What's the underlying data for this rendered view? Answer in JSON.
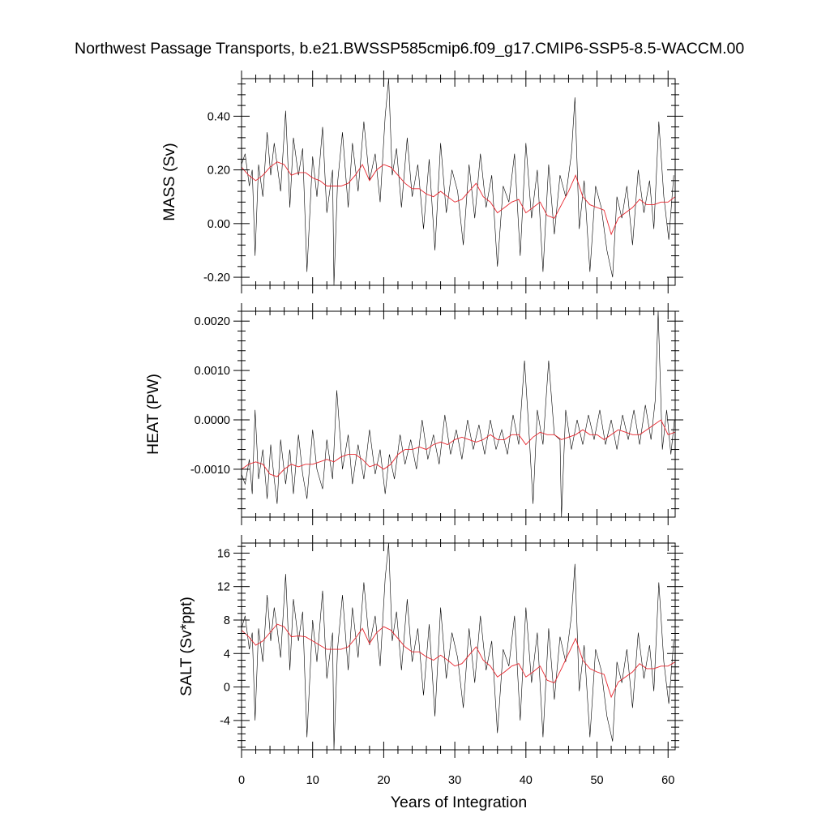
{
  "title": "Northwest Passage Transports, b.e21.BWSSP585cmip6.f09_g17.CMIP6-SSP5-8.5-WACCM.00",
  "colors": {
    "raw": "#000000",
    "smooth": "#e8242c",
    "frame": "#000000"
  },
  "chart_data": [
    {
      "type": "line",
      "ylabel": "MASS (Sv)",
      "xlabel": "",
      "xlim": [
        0,
        61
      ],
      "ylim": [
        -0.23,
        0.54
      ],
      "yticks": [
        -0.2,
        0.0,
        0.2,
        0.4
      ],
      "ytick_labels": [
        "-0.20",
        "0.00",
        "0.20",
        "0.40"
      ],
      "xticks": [
        0,
        10,
        20,
        30,
        40,
        50,
        60
      ],
      "xtick_labels": [],
      "series": [
        {
          "style": "raw",
          "x": [
            0,
            0.5,
            1.1,
            1.5,
            1.9,
            2.4,
            3.0,
            3.6,
            4.1,
            4.6,
            5.0,
            5.5,
            6.2,
            6.8,
            7.3,
            8.0,
            8.6,
            9.2,
            10.0,
            10.6,
            11.4,
            12.0,
            12.8,
            13.0,
            13.5,
            14.2,
            15.0,
            15.6,
            16.4,
            17.2,
            18.0,
            18.8,
            19.5,
            20.2,
            20.7,
            21.2,
            21.8,
            22.5,
            23.3,
            24.0,
            24.8,
            25.6,
            26.4,
            27.2,
            28.0,
            28.8,
            29.6,
            30.4,
            31.2,
            32.0,
            32.8,
            33.6,
            34.4,
            35.2,
            36.0,
            36.8,
            37.6,
            38.4,
            39.2,
            40.0,
            40.8,
            41.6,
            42.4,
            43.2,
            44.0,
            44.8,
            45.6,
            46.4,
            46.9,
            47.5,
            48.2,
            49.0,
            49.8,
            50.6,
            51.4,
            52.2,
            52.8,
            53.5,
            54.2,
            55.0,
            55.8,
            56.6,
            57.4,
            58.0,
            58.7,
            59.4,
            60.1,
            60.8
          ],
          "values": [
            0.22,
            0.26,
            0.14,
            0.2,
            -0.12,
            0.22,
            0.1,
            0.34,
            0.18,
            0.3,
            0.22,
            0.12,
            0.42,
            0.06,
            0.32,
            0.18,
            0.28,
            -0.18,
            0.25,
            0.1,
            0.36,
            0.04,
            0.2,
            -0.23,
            0.15,
            0.34,
            0.06,
            0.3,
            0.12,
            0.38,
            0.16,
            0.26,
            0.08,
            0.4,
            0.54,
            0.18,
            0.28,
            0.06,
            0.32,
            0.1,
            0.22,
            -0.02,
            0.24,
            -0.1,
            0.3,
            0.04,
            0.2,
            0.12,
            -0.08,
            0.22,
            0.02,
            0.26,
            0.06,
            0.18,
            -0.16,
            0.14,
            0.08,
            0.26,
            -0.12,
            0.3,
            0.02,
            0.2,
            -0.18,
            0.22,
            -0.04,
            0.18,
            0.1,
            0.26,
            0.47,
            -0.02,
            0.16,
            -0.18,
            0.14,
            0.06,
            -0.1,
            -0.2,
            0.1,
            0.02,
            0.14,
            -0.08,
            0.2,
            0.04,
            0.16,
            -0.02,
            0.38,
            0.1,
            -0.06,
            0.18
          ]
        },
        {
          "style": "smooth",
          "x": [
            0,
            1,
            2,
            3,
            4,
            5,
            6,
            7,
            8,
            9,
            10,
            11,
            12,
            13,
            14,
            15,
            16,
            17,
            18,
            19,
            20,
            21,
            22,
            23,
            24,
            25,
            26,
            27,
            28,
            29,
            30,
            31,
            32,
            33,
            34,
            35,
            36,
            37,
            38,
            39,
            40,
            41,
            42,
            43,
            44,
            45,
            46,
            47,
            48,
            49,
            50,
            51,
            52,
            53,
            54,
            55,
            56,
            57,
            58,
            59,
            60,
            61
          ],
          "values": [
            0.21,
            0.18,
            0.16,
            0.18,
            0.21,
            0.23,
            0.22,
            0.18,
            0.19,
            0.19,
            0.17,
            0.16,
            0.14,
            0.14,
            0.14,
            0.15,
            0.18,
            0.22,
            0.16,
            0.2,
            0.22,
            0.21,
            0.18,
            0.15,
            0.13,
            0.13,
            0.11,
            0.1,
            0.12,
            0.1,
            0.08,
            0.09,
            0.12,
            0.15,
            0.1,
            0.08,
            0.04,
            0.06,
            0.08,
            0.09,
            0.04,
            0.06,
            0.08,
            0.03,
            0.02,
            0.07,
            0.12,
            0.18,
            0.1,
            0.07,
            0.06,
            0.05,
            -0.04,
            0.02,
            0.04,
            0.06,
            0.09,
            0.07,
            0.07,
            0.08,
            0.08,
            0.1
          ]
        }
      ]
    },
    {
      "type": "line",
      "ylabel": "HEAT (PW)",
      "xlabel": "",
      "xlim": [
        0,
        61
      ],
      "ylim": [
        -0.00197,
        0.0022
      ],
      "yticks": [
        -0.001,
        0.0,
        0.001,
        0.002
      ],
      "ytick_labels": [
        "-0.0010",
        "0.0000",
        "0.0010",
        "0.0020"
      ],
      "xticks": [
        0,
        10,
        20,
        30,
        40,
        50,
        60
      ],
      "xtick_labels": [],
      "series": [
        {
          "style": "raw",
          "x": [
            0,
            0.5,
            1.1,
            1.5,
            1.9,
            2.4,
            3.0,
            3.6,
            4.1,
            4.6,
            5.0,
            5.5,
            6.2,
            6.8,
            7.3,
            8.0,
            8.6,
            9.2,
            10.0,
            10.6,
            11.4,
            12.0,
            12.8,
            13.4,
            14.2,
            15.0,
            15.6,
            16.4,
            17.2,
            18.0,
            18.8,
            19.5,
            20.2,
            20.8,
            21.5,
            22.3,
            23.0,
            23.8,
            24.6,
            25.4,
            26.2,
            27.0,
            27.8,
            28.6,
            29.4,
            30.2,
            31.0,
            31.8,
            32.6,
            33.4,
            34.2,
            35.0,
            35.8,
            36.6,
            37.4,
            38.2,
            39.0,
            39.8,
            40.5,
            41.0,
            41.6,
            42.4,
            43.2,
            44.0,
            44.8,
            45.0,
            45.6,
            46.4,
            47.2,
            48.0,
            48.8,
            49.6,
            50.4,
            51.2,
            52.0,
            52.8,
            53.6,
            54.4,
            55.2,
            56.0,
            56.8,
            57.6,
            58.2,
            58.6,
            59.2,
            59.8,
            60.4,
            60.9
          ],
          "values": [
            -0.0011,
            -0.0013,
            -0.0008,
            -0.0015,
            0.0002,
            -0.0012,
            -0.0006,
            -0.0016,
            -0.0005,
            -0.0012,
            -0.0017,
            -0.0004,
            -0.0013,
            -0.0006,
            -0.0015,
            -0.0003,
            -0.0011,
            -0.0016,
            -0.0002,
            -0.001,
            -0.0014,
            -0.0004,
            -0.0012,
            0.0006,
            -0.001,
            -0.0003,
            -0.0013,
            -0.0005,
            -0.0012,
            -0.0002,
            -0.0011,
            -0.0006,
            -0.0015,
            -0.0007,
            -0.0012,
            -0.0003,
            -0.0009,
            -0.0004,
            -0.001,
            0.0,
            -0.0008,
            -0.0003,
            -0.0009,
            0.0001,
            -0.0007,
            -0.0002,
            -0.0008,
            0.0,
            -0.0006,
            -0.0001,
            -0.0007,
            0.0,
            -0.0006,
            -0.0002,
            -0.0007,
            0.0001,
            -0.0005,
            0.0012,
            -0.0004,
            -0.0017,
            0.0002,
            -0.0005,
            0.0012,
            -0.0003,
            -0.0004,
            -0.00197,
            0.0002,
            -0.0006,
            0.0,
            -0.0005,
            0.0001,
            -0.0004,
            0.0002,
            -0.0005,
            0.0,
            -0.0006,
            0.0001,
            -0.0004,
            0.0002,
            -0.0005,
            0.0003,
            -0.0004,
            0.0004,
            0.0022,
            -0.0006,
            0.0002,
            -0.0007,
            0.0
          ]
        },
        {
          "style": "smooth",
          "x": [
            0,
            1,
            2,
            3,
            4,
            5,
            6,
            7,
            8,
            9,
            10,
            11,
            12,
            13,
            14,
            15,
            16,
            17,
            18,
            19,
            20,
            21,
            22,
            23,
            24,
            25,
            26,
            27,
            28,
            29,
            30,
            31,
            32,
            33,
            34,
            35,
            36,
            37,
            38,
            39,
            40,
            41,
            42,
            43,
            44,
            45,
            46,
            47,
            48,
            49,
            50,
            51,
            52,
            53,
            54,
            55,
            56,
            57,
            58,
            59,
            60,
            61
          ],
          "values": [
            -0.001,
            -0.0009,
            -0.00085,
            -0.0009,
            -0.0011,
            -0.00115,
            -0.001,
            -0.0009,
            -0.00095,
            -0.0009,
            -0.0009,
            -0.00085,
            -0.0008,
            -0.00085,
            -0.00075,
            -0.0007,
            -0.0007,
            -0.0008,
            -0.00095,
            -0.0009,
            -0.001,
            -0.0009,
            -0.0007,
            -0.0006,
            -0.0006,
            -0.00055,
            -0.0006,
            -0.0005,
            -0.00045,
            -0.0005,
            -0.0004,
            -0.00035,
            -0.0004,
            -0.00045,
            -0.0004,
            -0.0003,
            -0.0004,
            -0.0004,
            -0.0003,
            -0.0003,
            -0.0005,
            -0.00035,
            -0.00025,
            -0.0003,
            -0.0003,
            -0.0004,
            -0.00035,
            -0.0003,
            -0.0002,
            -0.0003,
            -0.0003,
            -0.0004,
            -0.0003,
            -0.0002,
            -0.00025,
            -0.0003,
            -0.0003,
            -0.0002,
            -0.0001,
            0.0,
            -0.0003,
            -0.00025
          ]
        }
      ]
    },
    {
      "type": "line",
      "ylabel": "SALT (Sv*ppt)",
      "xlabel": "Years of Integration",
      "xlim": [
        0,
        61
      ],
      "ylim": [
        -7.5,
        17.2
      ],
      "yticks": [
        -4,
        0,
        4,
        8,
        12,
        16
      ],
      "ytick_labels": [
        "-4",
        "0",
        "4",
        "8",
        "12",
        "16"
      ],
      "xticks": [
        0,
        10,
        20,
        30,
        40,
        50,
        60
      ],
      "xtick_labels": [
        "0",
        "10",
        "20",
        "30",
        "40",
        "50",
        "60"
      ],
      "series": [
        {
          "style": "raw",
          "x": [
            0,
            0.5,
            1.1,
            1.5,
            1.9,
            2.4,
            3.0,
            3.6,
            4.1,
            4.6,
            5.0,
            5.5,
            6.2,
            6.8,
            7.3,
            8.0,
            8.6,
            9.2,
            10.0,
            10.6,
            11.4,
            12.0,
            12.8,
            13.0,
            13.5,
            14.2,
            15.0,
            15.6,
            16.4,
            17.2,
            18.0,
            18.8,
            19.5,
            20.2,
            20.7,
            21.2,
            21.8,
            22.5,
            23.3,
            24.0,
            24.8,
            25.6,
            26.4,
            27.2,
            28.0,
            28.8,
            29.6,
            30.4,
            31.2,
            32.0,
            32.8,
            33.6,
            34.4,
            35.2,
            36.0,
            36.8,
            37.6,
            38.4,
            39.2,
            40.0,
            40.8,
            41.6,
            42.4,
            43.2,
            44.0,
            44.8,
            45.6,
            46.4,
            46.9,
            47.5,
            48.2,
            49.0,
            49.8,
            50.6,
            51.4,
            52.2,
            52.8,
            53.5,
            54.2,
            55.0,
            55.8,
            56.6,
            57.4,
            58.0,
            58.7,
            59.4,
            60.1,
            60.8
          ],
          "values": [
            7.0,
            8.5,
            4.5,
            6.5,
            -4.0,
            7.0,
            3.0,
            11.0,
            5.5,
            9.5,
            7.0,
            3.5,
            13.5,
            2.0,
            10.5,
            5.5,
            9.0,
            -6.0,
            8.0,
            3.0,
            11.5,
            1.0,
            6.5,
            -7.5,
            4.5,
            11.0,
            2.0,
            9.5,
            3.5,
            12.5,
            5.0,
            8.5,
            2.5,
            13.0,
            17.2,
            5.5,
            9.0,
            2.0,
            10.5,
            3.0,
            7.0,
            -1.0,
            7.5,
            -3.5,
            9.5,
            1.0,
            6.5,
            3.5,
            -2.5,
            7.0,
            0.5,
            8.5,
            2.0,
            5.5,
            -5.5,
            4.5,
            2.5,
            8.5,
            -4.0,
            9.5,
            0.5,
            6.5,
            -6.0,
            7.0,
            -1.5,
            6.0,
            3.0,
            8.5,
            14.7,
            -0.5,
            5.0,
            -6.0,
            4.5,
            2.0,
            -3.5,
            -6.5,
            3.0,
            0.5,
            4.5,
            -2.5,
            6.5,
            1.0,
            5.0,
            -0.5,
            12.5,
            3.0,
            -2.0,
            5.5
          ]
        },
        {
          "style": "smooth",
          "x": [
            0,
            1,
            2,
            3,
            4,
            5,
            6,
            7,
            8,
            9,
            10,
            11,
            12,
            13,
            14,
            15,
            16,
            17,
            18,
            19,
            20,
            21,
            22,
            23,
            24,
            25,
            26,
            27,
            28,
            29,
            30,
            31,
            32,
            33,
            34,
            35,
            36,
            37,
            38,
            39,
            40,
            41,
            42,
            43,
            44,
            45,
            46,
            47,
            48,
            49,
            50,
            51,
            52,
            53,
            54,
            55,
            56,
            57,
            58,
            59,
            60,
            61
          ],
          "values": [
            6.8,
            6.0,
            5.0,
            5.5,
            6.5,
            7.5,
            7.2,
            6.0,
            6.1,
            6.0,
            5.5,
            5.0,
            4.5,
            4.5,
            4.5,
            4.8,
            5.8,
            7.0,
            5.2,
            6.5,
            7.2,
            6.8,
            5.8,
            4.8,
            4.2,
            4.2,
            3.6,
            3.2,
            3.8,
            3.2,
            2.5,
            2.8,
            3.8,
            4.8,
            3.2,
            2.5,
            1.2,
            1.8,
            2.5,
            2.8,
            1.2,
            1.8,
            2.5,
            0.8,
            0.5,
            2.2,
            4.0,
            5.8,
            3.2,
            2.2,
            1.8,
            1.5,
            -1.2,
            0.6,
            1.2,
            1.8,
            2.8,
            2.2,
            2.2,
            2.5,
            2.5,
            3.0
          ]
        }
      ]
    }
  ]
}
